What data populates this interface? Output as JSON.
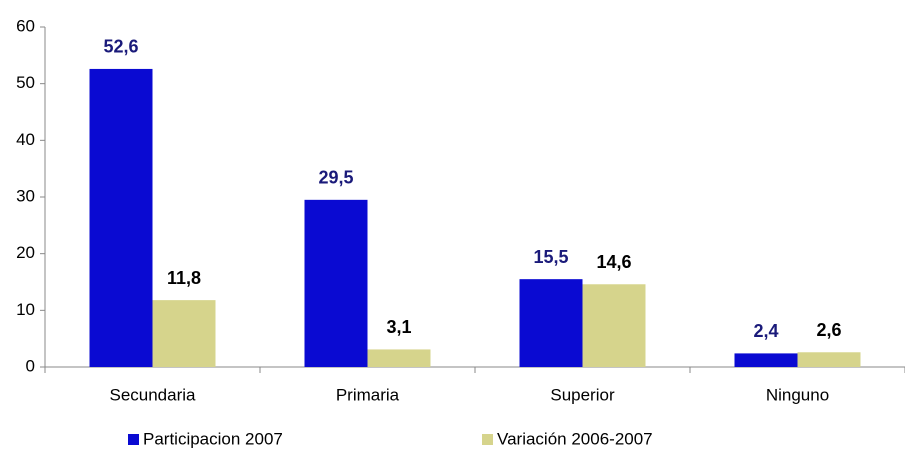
{
  "chart_data": {
    "type": "bar",
    "categories": [
      "Secundaria",
      "Primaria",
      "Superior",
      "Ninguno"
    ],
    "series": [
      {
        "name": "Participacion 2007",
        "color": "#0a0ad2",
        "label_color": "#1a1a7a",
        "values": [
          52.6,
          29.5,
          15.5,
          2.4
        ],
        "value_labels": [
          "52,6",
          "29,5",
          "15,5",
          "2,4"
        ]
      },
      {
        "name": "Variación 2006-2007",
        "color": "#d6d48c",
        "label_color": "#000000",
        "values": [
          11.8,
          3.1,
          14.6,
          2.6
        ],
        "value_labels": [
          "11,8",
          "3,1",
          "14,6",
          "2,6"
        ]
      }
    ],
    "ylim": [
      0,
      60
    ],
    "yticks": [
      0,
      10,
      20,
      30,
      40,
      50,
      60
    ],
    "grid": false,
    "legend": "bottom"
  }
}
